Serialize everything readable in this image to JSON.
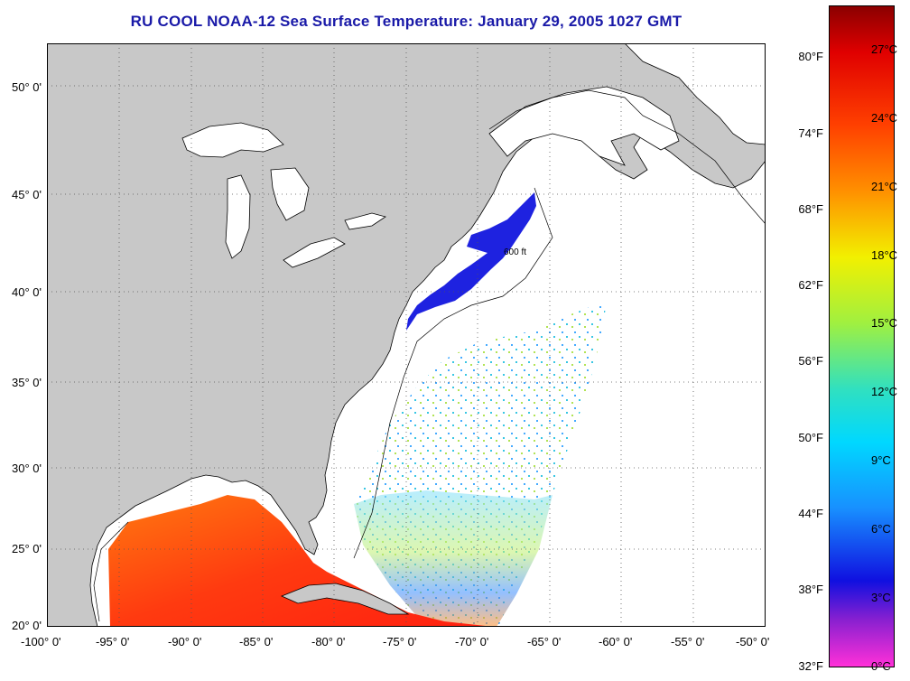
{
  "title": "RU COOL  NOAA-12  Sea Surface Temperature:  January 29, 2005 1027 GMT",
  "latitude_ticks": [
    "50° 0'",
    "45° 0'",
    "40° 0'",
    "35° 0'",
    "30° 0'",
    "25° 0'",
    "20° 0'"
  ],
  "longitude_ticks": [
    "-100° 0'",
    "-95° 0'",
    "-90° 0'",
    "-85° 0'",
    "-80° 0'",
    "-75° 0'",
    "-70° 0'",
    "-65° 0'",
    "-60° 0'",
    "-55° 0'",
    "-50° 0'"
  ],
  "isobath_label": "600 ft",
  "colorbar": {
    "fahrenheit_ticks": [
      "80°F",
      "74°F",
      "68°F",
      "62°F",
      "56°F",
      "50°F",
      "44°F",
      "38°F",
      "32°F"
    ],
    "celsius_ticks": [
      "27°C",
      "24°C",
      "21°C",
      "18°C",
      "15°C",
      "12°C",
      "9°C",
      "6°C",
      "3°C",
      "0°C"
    ]
  },
  "colors": {
    "title": "#1a1aa8",
    "land": "#c8c8c8",
    "no_data": "#ffffff",
    "gridline": "#666666"
  }
}
